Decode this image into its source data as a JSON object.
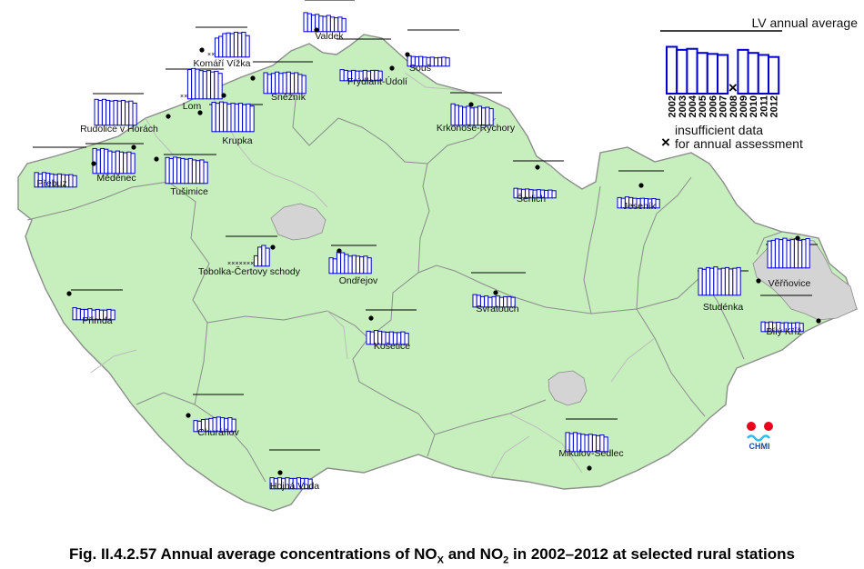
{
  "caption": {
    "text_before_x": "Fig. II.4.2.57 Annual average concentrations of NO",
    "sub_x": "X",
    "text_middle": " and NO",
    "sub_2": "2",
    "text_after": " in 2002–2012 at selected rural stations"
  },
  "legend": {
    "lv_label": "LV annual average",
    "years": [
      "2002",
      "2003",
      "2004",
      "2005",
      "2006",
      "2007",
      "2008",
      "2009",
      "2010",
      "2011",
      "2012"
    ],
    "example_values": [
      0.92,
      0.86,
      0.88,
      0.8,
      0.78,
      0.76,
      null,
      0.86,
      0.8,
      0.76,
      0.72
    ],
    "insufficient_label_1": "insufficient data",
    "insufficient_label_2": "for annual assessment"
  },
  "logo": {
    "text": "CHMI"
  },
  "colors": {
    "country_fill": "#c6efbd",
    "bar_stroke": "#0000cc",
    "dark_border": "#8c8c8c",
    "light_border": "#bcbcbc",
    "urban_fill": "#d4d4d4",
    "logo_red": "#e8001c",
    "logo_cyan": "#36b8ea",
    "logo_text": "#1f4a9c"
  },
  "chart_data": {
    "type": "bar",
    "x": [
      "2002",
      "2003",
      "2004",
      "2005",
      "2006",
      "2007",
      "2008",
      "2009",
      "2010",
      "2011",
      "2012"
    ],
    "series": [
      {
        "name": "Valdek",
        "values": [
          0.55,
          0.52,
          0.48,
          0.5,
          0.45,
          0.44,
          0.47,
          0.42,
          0.4,
          0.42,
          0.38
        ]
      },
      {
        "name": "Komáří Vížka",
        "values": [
          null,
          null,
          0.55,
          0.6,
          0.68,
          0.7,
          0.68,
          0.72,
          0.7,
          0.72,
          0.62
        ]
      },
      {
        "name": "Souš",
        "values": [
          0.3,
          0.28,
          0.27,
          0.28,
          0.26,
          0.25,
          0.26,
          0.24,
          0.25,
          0.26,
          0.24
        ]
      },
      {
        "name": "Frýdlant-Údolí",
        "values": [
          0.32,
          0.3,
          0.28,
          0.3,
          0.28,
          0.28,
          0.3,
          0.28,
          0.3,
          0.3,
          0.28
        ]
      },
      {
        "name": "Sněžník",
        "values": [
          0.6,
          0.55,
          0.58,
          0.62,
          0.58,
          0.6,
          0.62,
          0.58,
          0.6,
          0.55,
          0.52
        ]
      },
      {
        "name": "Lom",
        "values": [
          null,
          null,
          0.85,
          0.88,
          0.86,
          0.82,
          0.8,
          0.82,
          0.78,
          0.8,
          0.74
        ]
      },
      {
        "name": "Krupka",
        "values": [
          0.85,
          0.82,
          0.86,
          0.84,
          0.8,
          0.82,
          0.8,
          0.82,
          0.78,
          0.8,
          0.74
        ]
      },
      {
        "name": "Rudolice v Horách",
        "values": [
          0.75,
          0.72,
          0.75,
          0.72,
          0.7,
          0.72,
          0.7,
          0.72,
          0.68,
          0.7,
          0.64
        ]
      },
      {
        "name": "Krkonoše-Rýchory",
        "values": [
          0.62,
          0.58,
          0.55,
          0.52,
          0.55,
          0.5,
          0.52,
          0.55,
          0.5,
          0.52,
          0.48
        ]
      },
      {
        "name": "Měděnec",
        "values": [
          0.72,
          0.68,
          0.72,
          0.7,
          0.65,
          0.62,
          0.65,
          0.62,
          0.6,
          0.62,
          0.58
        ]
      },
      {
        "name": "Přebuz",
        "values": [
          0.42,
          0.38,
          0.42,
          0.4,
          0.38,
          0.36,
          0.38,
          0.36,
          0.35,
          0.36,
          0.33
        ]
      },
      {
        "name": "Tušimice",
        "values": [
          0.75,
          0.72,
          0.76,
          0.74,
          0.72,
          0.7,
          0.72,
          0.68,
          0.66,
          0.68,
          0.62
        ]
      },
      {
        "name": "Šerlich",
        "values": [
          0.28,
          0.26,
          0.25,
          0.26,
          0.24,
          0.23,
          0.24,
          0.23,
          0.22,
          0.23,
          0.21
        ]
      },
      {
        "name": "Jeseník",
        "values": [
          0.3,
          0.28,
          0.32,
          0.3,
          0.28,
          0.27,
          0.28,
          0.27,
          0.26,
          0.27,
          0.25
        ]
      },
      {
        "name": "Tobolka-Čertovy schody",
        "values": [
          null,
          null,
          null,
          null,
          null,
          null,
          null,
          0.3,
          0.55,
          0.6,
          0.52
        ]
      },
      {
        "name": "Ondřejov",
        "values": [
          0.45,
          0.42,
          0.62,
          0.6,
          0.55,
          0.5,
          0.52,
          0.5,
          0.48,
          0.5,
          0.45
        ]
      },
      {
        "name": "Věřňovice",
        "values": [
          0.78,
          0.8,
          0.84,
          0.82,
          0.86,
          0.8,
          0.82,
          0.84,
          0.8,
          0.82,
          0.85
        ]
      },
      {
        "name": "Studénka",
        "values": [
          0.78,
          0.75,
          0.8,
          0.78,
          0.82,
          0.76,
          0.78,
          0.8,
          0.76,
          0.78,
          0.8
        ]
      },
      {
        "name": "Přimda",
        "values": [
          0.35,
          0.32,
          0.3,
          0.3,
          0.32,
          0.28,
          0.3,
          0.28,
          0.28,
          0.3,
          0.28
        ]
      },
      {
        "name": "Svratouch",
        "values": [
          0.36,
          0.34,
          0.3,
          0.32,
          0.28,
          0.3,
          0.32,
          0.28,
          0.3,
          0.3,
          0.28
        ]
      },
      {
        "name": "Bílý Kříž",
        "values": [
          0.28,
          0.26,
          0.28,
          0.26,
          0.27,
          0.25,
          0.26,
          0.25,
          0.25,
          0.26,
          0.24
        ]
      },
      {
        "name": "Košetice",
        "values": [
          0.38,
          0.36,
          0.4,
          0.38,
          0.36,
          0.35,
          0.36,
          0.34,
          0.34,
          0.36,
          0.32
        ]
      },
      {
        "name": "Churáňov",
        "values": [
          0.32,
          0.3,
          0.35,
          0.36,
          0.38,
          0.4,
          0.42,
          0.4,
          0.38,
          0.4,
          0.36
        ]
      },
      {
        "name": "Mikulov-Sedlec",
        "values": [
          0.55,
          0.52,
          0.55,
          0.52,
          0.5,
          0.48,
          0.5,
          0.48,
          0.46,
          0.48,
          0.42
        ]
      },
      {
        "name": "Hojná Voda",
        "values": [
          0.32,
          0.3,
          0.32,
          0.3,
          0.32,
          0.3,
          0.3,
          0.32,
          0.3,
          0.3,
          0.28
        ]
      }
    ]
  }
}
